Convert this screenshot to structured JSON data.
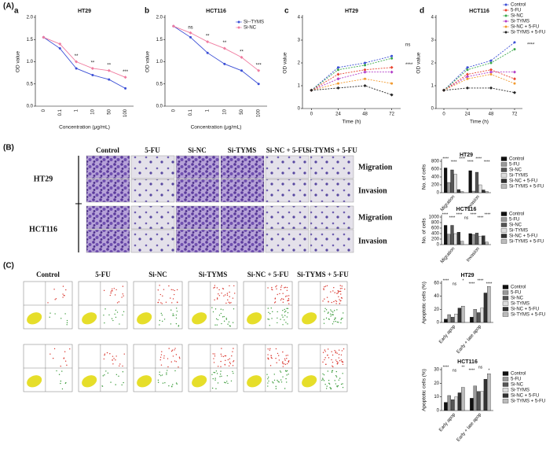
{
  "figure": {
    "panel_labels": [
      "(A)",
      "(B)",
      "(C)"
    ],
    "chart_letters": [
      "a",
      "b",
      "c",
      "d"
    ],
    "treatments": [
      "Control",
      "5-FU",
      "Si-NC",
      "Si-TYMS",
      "Si-NC + 5-FU",
      "Si-TYMS + 5-FU"
    ],
    "cell_lines": [
      "HT29",
      "HCT116"
    ],
    "assays": [
      "Migration",
      "Invasion"
    ]
  },
  "chart_data": [
    {
      "type": "line",
      "title": "HT29",
      "xlabel": "Concentration (μg/mL)",
      "ylabel": "OD value",
      "categories": [
        "0",
        "0.1",
        "1",
        "10",
        "50",
        "100"
      ],
      "series": [
        {
          "color": "#3b4fd6",
          "values": [
            1.55,
            1.3,
            0.85,
            0.7,
            0.6,
            0.4
          ]
        },
        {
          "color": "#f07ca0",
          "values": [
            1.55,
            1.4,
            1.0,
            0.85,
            0.8,
            0.65
          ]
        }
      ],
      "ylim": [
        0,
        2
      ],
      "yticks": [
        {
          "value": 0,
          "label": "0.0"
        },
        {
          "value": 0.5,
          "label": "0.5"
        },
        {
          "value": 1,
          "label": "1.0"
        },
        {
          "value": 1.5,
          "label": "1.5"
        },
        {
          "value": 2,
          "label": "2.0"
        }
      ],
      "annotations": [
        "**",
        "**",
        "**",
        "***"
      ],
      "dashed": false
    },
    {
      "type": "line",
      "title": "HCT116",
      "xlabel": "Concentration (μg/mL)",
      "ylabel": "OD value",
      "categories": [
        "0",
        "0.1",
        "1",
        "10",
        "50",
        "100"
      ],
      "series": [
        {
          "name": "Si--TYMS",
          "color": "#3b4fd6",
          "values": [
            1.8,
            1.55,
            1.2,
            0.95,
            0.8,
            0.5
          ]
        },
        {
          "name": "Si-NC",
          "color": "#f07ca0",
          "values": [
            1.8,
            1.65,
            1.45,
            1.3,
            1.1,
            0.8
          ]
        }
      ],
      "ylim": [
        0,
        2
      ],
      "yticks": [
        {
          "value": 0,
          "label": "0.0"
        },
        {
          "value": 0.5,
          "label": "0.5"
        },
        {
          "value": 1,
          "label": "1.0"
        },
        {
          "value": 1.5,
          "label": "1.5"
        },
        {
          "value": 2,
          "label": "2.0"
        }
      ],
      "annotations": [
        "ns",
        "**",
        "**",
        "**",
        "***"
      ],
      "dashed": false
    },
    {
      "type": "line",
      "title": "HT29",
      "xlabel": "Time (h)",
      "ylabel": "OD value",
      "x": [
        0,
        24,
        48,
        72
      ],
      "xlim": [
        -8,
        80
      ],
      "xticks": [
        0,
        24,
        48,
        72
      ],
      "series": [
        {
          "color": "#3b4fd6",
          "values": [
            0.8,
            1.8,
            2.0,
            2.3
          ]
        },
        {
          "color": "#e8432e",
          "values": [
            0.8,
            1.5,
            1.7,
            1.8
          ]
        },
        {
          "color": "#3aa84a",
          "values": [
            0.8,
            1.7,
            1.9,
            2.2
          ]
        },
        {
          "color": "#b23cc8",
          "values": [
            0.8,
            1.3,
            1.6,
            1.6
          ]
        },
        {
          "color": "#f29a2e",
          "values": [
            0.8,
            1.1,
            1.3,
            1.1
          ]
        },
        {
          "color": "#222222",
          "values": [
            0.8,
            0.9,
            1.0,
            0.6
          ]
        }
      ],
      "ylim": [
        0,
        4
      ],
      "yticks": [
        0,
        1,
        2,
        3,
        4
      ],
      "annotations": [
        "ns",
        "****"
      ],
      "dashed": true
    },
    {
      "type": "line",
      "title": "HCT116",
      "xlabel": "Time (h)",
      "ylabel": "OD value",
      "x": [
        0,
        24,
        48,
        72
      ],
      "xlim": [
        -8,
        80
      ],
      "xticks": [
        0,
        24,
        48,
        72
      ],
      "series": [
        {
          "name": "Control",
          "color": "#3b4fd6",
          "values": [
            0.8,
            1.8,
            2.1,
            2.9
          ]
        },
        {
          "name": "5-FU",
          "color": "#e8432e",
          "values": [
            0.8,
            1.5,
            1.7,
            1.3
          ]
        },
        {
          "name": "Si-NC",
          "color": "#3aa84a",
          "values": [
            0.8,
            1.7,
            2.0,
            2.6
          ]
        },
        {
          "name": "Si-TYMS",
          "color": "#b23cc8",
          "values": [
            0.8,
            1.4,
            1.6,
            1.6
          ]
        },
        {
          "name": "Si-NC + 5-FU",
          "color": "#f29a2e",
          "values": [
            0.8,
            1.3,
            1.5,
            1.1
          ]
        },
        {
          "name": "Si-TYMS + 5-FU",
          "color": "#222222",
          "values": [
            0.8,
            0.9,
            0.9,
            0.7
          ]
        }
      ],
      "ylim": [
        0,
        4
      ],
      "yticks": [
        0,
        1,
        2,
        3,
        4
      ],
      "annotations": [
        "****"
      ],
      "dashed": true
    },
    {
      "type": "bar",
      "title": "HT29",
      "ylabel": "No. of cells",
      "categories": [
        "Migration",
        "Invasion"
      ],
      "series": [
        {
          "name": "Control",
          "color": "#111111",
          "values": [
            630,
            560
          ]
        },
        {
          "name": "5-FU",
          "color": "#999999",
          "values": [
            260,
            40
          ]
        },
        {
          "name": "Si-NC",
          "color": "#555555",
          "values": [
            580,
            520
          ]
        },
        {
          "name": "Si-TYMS",
          "color": "#dddddd",
          "values": [
            470,
            200
          ]
        },
        {
          "name": "Si-NC + 5-FU",
          "color": "#333333",
          "values": [
            80,
            70
          ]
        },
        {
          "name": "Si-TYMS + 5-FU",
          "color": "#bbbbbb",
          "values": [
            30,
            30
          ]
        }
      ],
      "ylim": [
        0,
        800
      ],
      "yticks": [
        0,
        200,
        400,
        600,
        800
      ],
      "annotations": [
        "****",
        "****",
        "****",
        "****",
        "****",
        "****"
      ]
    },
    {
      "type": "bar",
      "title": "HCT116",
      "ylabel": "No. of cells",
      "categories": [
        "Migration",
        "Invasion"
      ],
      "series": [
        {
          "name": "Control",
          "color": "#111111",
          "values": [
            700,
            400
          ]
        },
        {
          "name": "5-FU",
          "color": "#999999",
          "values": [
            380,
            370
          ]
        },
        {
          "name": "Si-NC",
          "color": "#555555",
          "values": [
            700,
            420
          ]
        },
        {
          "name": "Si-TYMS",
          "color": "#dddddd",
          "values": [
            400,
            300
          ]
        },
        {
          "name": "Si-NC + 5-FU",
          "color": "#333333",
          "values": [
            450,
            320
          ]
        },
        {
          "name": "Si-TYMS + 5-FU",
          "color": "#bbbbbb",
          "values": [
            120,
            90
          ]
        }
      ],
      "ylim": [
        0,
        1000
      ],
      "yticks": [
        0,
        200,
        400,
        600,
        800,
        1000
      ],
      "annotations": [
        "****",
        "****",
        "****",
        "ns",
        "****",
        "****",
        "****"
      ]
    },
    {
      "type": "bar",
      "title": "HT29",
      "ylabel": "Apoptotic cells (%)",
      "categories": [
        "Early apop",
        "Early + late apop"
      ],
      "series": [
        {
          "name": "Control",
          "color": "#111111",
          "values": [
            5,
            8
          ]
        },
        {
          "name": "5-FU",
          "color": "#999999",
          "values": [
            12,
            20
          ]
        },
        {
          "name": "Si-NC",
          "color": "#555555",
          "values": [
            8,
            15
          ]
        },
        {
          "name": "Si-TYMS",
          "color": "#dddddd",
          "values": [
            13,
            22
          ]
        },
        {
          "name": "Si-NC + 5-FU",
          "color": "#333333",
          "values": [
            22,
            45
          ]
        },
        {
          "name": "Si-TYMS + 5-FU",
          "color": "#bbbbbb",
          "values": [
            25,
            55
          ]
        }
      ],
      "ylim": [
        0,
        60
      ],
      "yticks": [
        0,
        20,
        40,
        60
      ],
      "annotations": [
        "****",
        "ns",
        "*",
        "****",
        "****",
        "****"
      ]
    },
    {
      "type": "bar",
      "title": "HCT116",
      "ylabel": "Apoptotic cells (%)",
      "categories": [
        "Early apop",
        "Early + late apop"
      ],
      "series": [
        {
          "name": "Control",
          "color": "#111111",
          "values": [
            6,
            9
          ]
        },
        {
          "name": "5-FU",
          "color": "#999999",
          "values": [
            11,
            18
          ]
        },
        {
          "name": "Si-NC",
          "color": "#555555",
          "values": [
            8,
            14
          ]
        },
        {
          "name": "Si-TYMS",
          "color": "#dddddd",
          "values": [
            10,
            14
          ]
        },
        {
          "name": "Si-NC + 5-FU",
          "color": "#333333",
          "values": [
            13,
            23
          ]
        },
        {
          "name": "Si-TYMS + 5-FU",
          "color": "#bbbbbb",
          "values": [
            17,
            27
          ]
        }
      ],
      "ylim": [
        0,
        30
      ],
      "yticks": [
        0,
        10,
        20,
        30
      ],
      "annotations": [
        "****",
        "ns",
        "**",
        "****",
        "ns",
        "*"
      ]
    }
  ]
}
